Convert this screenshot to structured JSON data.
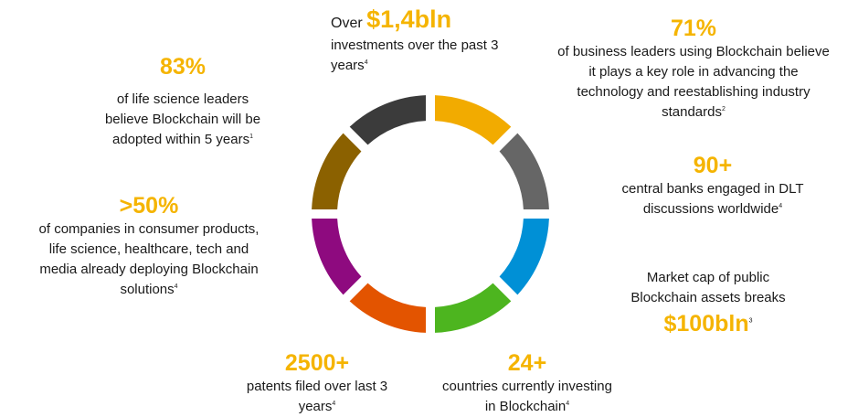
{
  "ring": {
    "segments": [
      {
        "name": "yellow",
        "color": "#f2ab00"
      },
      {
        "name": "gray",
        "color": "#666666"
      },
      {
        "name": "blue",
        "color": "#0090d6"
      },
      {
        "name": "green",
        "color": "#4db51f"
      },
      {
        "name": "orange",
        "color": "#e35400"
      },
      {
        "name": "purple",
        "color": "#8e0a7f"
      },
      {
        "name": "brown",
        "color": "#8b6100"
      },
      {
        "name": "dark-gray",
        "color": "#3b3b3b"
      }
    ]
  },
  "stats": {
    "investments": {
      "prefix": "Over ",
      "value": "$1,4bln",
      "text_line1": "investments over the past 3",
      "text_line2": "years",
      "ref": "4"
    },
    "business_leaders": {
      "value": "71%",
      "line1": "of business leaders using Blockchain believe",
      "line2": "it plays a key role in advancing the",
      "line3": "technology and reestablishing industry",
      "line4": "standards",
      "ref": "2"
    },
    "life_science": {
      "value": "83%",
      "line1": "of life science leaders",
      "line2": "believe Blockchain will be",
      "line3": "adopted within 5 years",
      "ref": "1"
    },
    "central_banks": {
      "value": "90+",
      "line1": "central banks engaged in DLT",
      "line2": "discussions worldwide",
      "ref": "4"
    },
    "companies": {
      "value": ">50%",
      "line1": "of companies in consumer products,",
      "line2": "life science, healthcare, tech and",
      "line3": "media already deploying Blockchain",
      "line4": "solutions",
      "ref": "4"
    },
    "market_cap": {
      "line1": "Market cap of public",
      "line2": "Blockchain assets breaks",
      "value": "$100bln",
      "ref": "3"
    },
    "patents": {
      "value": "2500+",
      "line1": "patents filed over last 3",
      "line2": "years",
      "ref": "4"
    },
    "countries": {
      "value": "24+",
      "line1": "countries currently investing",
      "line2": "in Blockchain",
      "ref": "4"
    }
  }
}
